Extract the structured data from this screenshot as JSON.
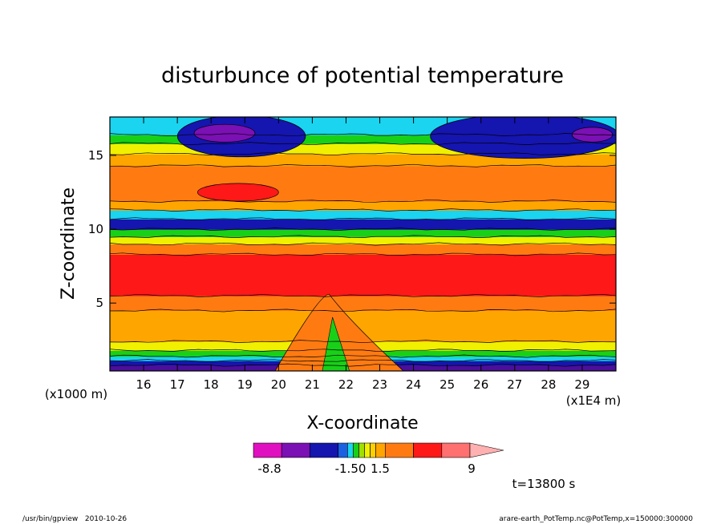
{
  "chart_data": {
    "type": "heatmap",
    "title": "disturbunce of potential temperature",
    "xlabel": "X-coordinate",
    "ylabel": "Z-coordinate",
    "x_unit": "(x1E4 m)",
    "y_unit": "(x1000 m)",
    "xlim": [
      15.0,
      30.0
    ],
    "ylim": [
      0.4,
      17.6
    ],
    "x_ticks": [
      16,
      17,
      18,
      19,
      20,
      21,
      22,
      23,
      24,
      25,
      26,
      27,
      28,
      29
    ],
    "y_ticks": [
      5,
      10,
      15
    ],
    "layers": [
      {
        "z": 0.4,
        "color": "#4b0f9a"
      },
      {
        "z": 0.8,
        "color": "#1515b0"
      },
      {
        "z": 1.1,
        "color": "#1ad4f0"
      },
      {
        "z": 1.4,
        "color": "#18d018"
      },
      {
        "z": 1.8,
        "color": "#f0f000"
      },
      {
        "z": 2.4,
        "color": "#ffa500"
      },
      {
        "z": 4.5,
        "color": "#ff7b12"
      },
      {
        "z": 5.5,
        "color": "#ff1818"
      },
      {
        "z": 8.3,
        "color": "#ff7b12"
      },
      {
        "z": 9.0,
        "color": "#f0f000"
      },
      {
        "z": 9.5,
        "color": "#18d018"
      },
      {
        "z": 10.0,
        "color": "#1515b0"
      },
      {
        "z": 10.7,
        "color": "#1ad4f0"
      },
      {
        "z": 11.3,
        "color": "#ffa500"
      },
      {
        "z": 11.9,
        "color": "#ff7b12"
      },
      {
        "z": 14.3,
        "color": "#ffa500"
      },
      {
        "z": 15.1,
        "color": "#f0f000"
      },
      {
        "z": 15.8,
        "color": "#18d018"
      },
      {
        "z": 16.4,
        "color": "#1ad4f0"
      },
      {
        "z": 17.6,
        "color": "#1ad4f0"
      }
    ],
    "features": [
      {
        "kind": "upper-low-left",
        "x": 18.9,
        "z": 16.3,
        "rx": 1.9,
        "rz": 1.4,
        "color": "#1515b0"
      },
      {
        "kind": "upper-low-left-core",
        "x": 18.4,
        "z": 16.5,
        "rx": 0.9,
        "rz": 0.6,
        "color": "#7b10b4"
      },
      {
        "kind": "upper-low-right",
        "x": 27.3,
        "z": 16.3,
        "rx": 2.8,
        "rz": 1.5,
        "color": "#1515b0"
      },
      {
        "kind": "upper-low-right-core",
        "x": 29.3,
        "z": 16.4,
        "rx": 0.6,
        "rz": 0.5,
        "color": "#7b10b4"
      },
      {
        "kind": "upper-warm",
        "x": 18.8,
        "z": 12.5,
        "rx": 1.2,
        "rz": 0.6,
        "color": "#ff1818"
      },
      {
        "kind": "mountain-wave",
        "x": 21.5,
        "z": 3.0,
        "rx": 1.0,
        "rz": 2.6,
        "color": "#ff7b12"
      }
    ],
    "legend": {
      "type": "colorbar",
      "colors": [
        "#e010c0",
        "#7b10b4",
        "#1515b0",
        "#1a60e0",
        "#1ad4f0",
        "#18d018",
        "#a0e000",
        "#f0f000",
        "#ffd000",
        "#ffa500",
        "#ff7b12",
        "#ff1818",
        "#ff7070",
        "#ffb0b0"
      ],
      "tick_labels": [
        "-8.8",
        "-1.50",
        "1.5",
        "9"
      ]
    },
    "annotations": {
      "time": "t=13800 s",
      "footer_left": "/usr/bin/gpview   2010-10-26",
      "footer_right": "arare-earth_PotTemp.nc@PotTemp,x=150000:300000"
    }
  }
}
